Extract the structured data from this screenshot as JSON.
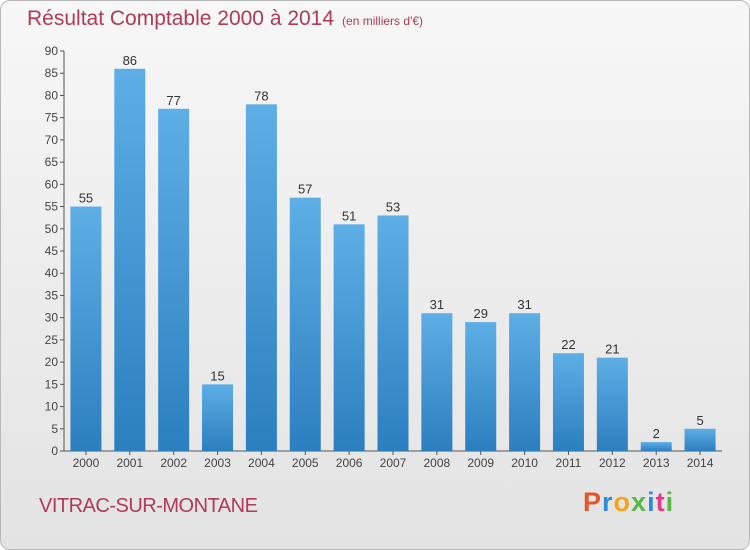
{
  "header": {
    "title": "Résultat Comptable 2000 à 2014",
    "unit": "(en milliers d'€)"
  },
  "footer": {
    "commune": "VITRAC-SUR-MONTANE",
    "logo": "Proxiti"
  },
  "colors": {
    "bar_top": "#5eaee6",
    "bar_bottom": "#2c7fbf",
    "title": "#b03a57",
    "logo": [
      "#e8552b",
      "#2e8bd8",
      "#f2a51c",
      "#57b847",
      "#2e8bd8",
      "#e23b8c",
      "#57b847"
    ]
  },
  "chart_data": {
    "type": "bar",
    "categories": [
      "2000",
      "2001",
      "2002",
      "2003",
      "2004",
      "2005",
      "2006",
      "2007",
      "2008",
      "2009",
      "2010",
      "2011",
      "2012",
      "2013",
      "2014"
    ],
    "values": [
      55,
      86,
      77,
      15,
      78,
      57,
      51,
      53,
      31,
      29,
      31,
      22,
      21,
      2,
      5
    ],
    "title": "Résultat Comptable 2000 à 2014",
    "xlabel": "",
    "ylabel": "",
    "ylim": [
      0,
      90
    ],
    "yticks": [
      0,
      5,
      10,
      15,
      20,
      25,
      30,
      35,
      40,
      45,
      50,
      55,
      60,
      65,
      70,
      75,
      80,
      85,
      90
    ],
    "grid": false,
    "data_labels": true
  }
}
